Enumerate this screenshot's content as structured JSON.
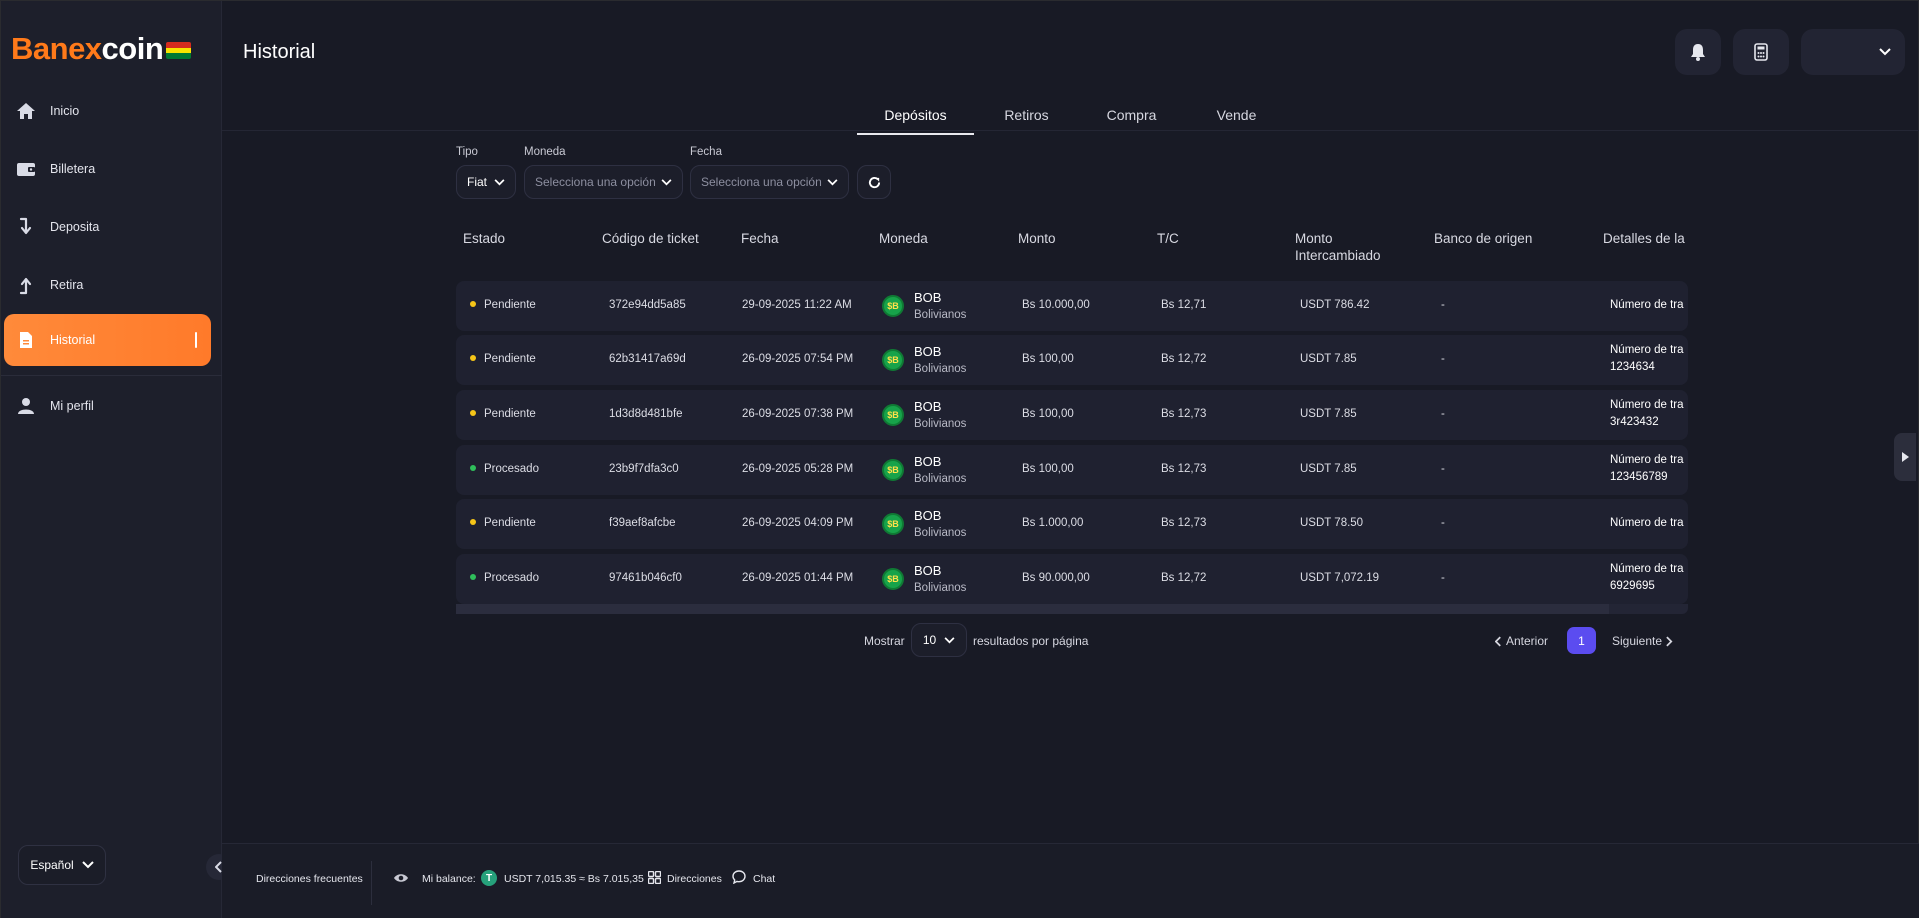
{
  "brand": {
    "name_part1": "Banex",
    "name_part2": "coin"
  },
  "sidebar": {
    "items": [
      {
        "label": "Inicio",
        "icon": "home-icon"
      },
      {
        "label": "Billetera",
        "icon": "wallet-icon"
      },
      {
        "label": "Deposita",
        "icon": "arrow-down-icon"
      },
      {
        "label": "Retira",
        "icon": "arrow-up-icon"
      },
      {
        "label": "Historial",
        "icon": "document-icon",
        "active": true
      },
      {
        "label": "Mi perfil",
        "icon": "user-icon"
      }
    ],
    "language": "Español"
  },
  "header": {
    "title": "Historial"
  },
  "tabs": [
    {
      "label": "Depósitos",
      "active": true
    },
    {
      "label": "Retiros"
    },
    {
      "label": "Compra"
    },
    {
      "label": "Vende"
    }
  ],
  "filters": {
    "tipo": {
      "label": "Tipo",
      "value": "Fiat"
    },
    "moneda": {
      "label": "Moneda",
      "placeholder": "Selecciona una opción"
    },
    "fecha": {
      "label": "Fecha",
      "placeholder": "Selecciona una opción"
    }
  },
  "table": {
    "headers": [
      "Estado",
      "Código de ticket",
      "Fecha",
      "Moneda",
      "Monto",
      "T/C",
      "Monto\nIntercambiado",
      "Banco de origen",
      "Detalles de la"
    ],
    "rows": [
      {
        "status": "Pendiente",
        "status_color": "#f5c518",
        "ticket": "372e94dd5a85",
        "date": "29-09-2025 11:22 AM",
        "coin_symbol": "$B",
        "coin": "BOB",
        "coin_name": "Bolivianos",
        "amount": "Bs 10.000,00",
        "rate": "Bs 12,71",
        "exchanged": "USDT 786.42",
        "bank": "-",
        "detail1": "Número de tra",
        "detail2": ""
      },
      {
        "status": "Pendiente",
        "status_color": "#f5c518",
        "ticket": "62b31417a69d",
        "date": "26-09-2025 07:54 PM",
        "coin_symbol": "$B",
        "coin": "BOB",
        "coin_name": "Bolivianos",
        "amount": "Bs 100,00",
        "rate": "Bs 12,72",
        "exchanged": "USDT 7.85",
        "bank": "-",
        "detail1": "Número de tra",
        "detail2": "1234634"
      },
      {
        "status": "Pendiente",
        "status_color": "#f5c518",
        "ticket": "1d3d8d481bfe",
        "date": "26-09-2025 07:38 PM",
        "coin_symbol": "$B",
        "coin": "BOB",
        "coin_name": "Bolivianos",
        "amount": "Bs 100,00",
        "rate": "Bs 12,73",
        "exchanged": "USDT 7.85",
        "bank": "-",
        "detail1": "Número de tra",
        "detail2": "3r423432"
      },
      {
        "status": "Procesado",
        "status_color": "#2fbf5b",
        "ticket": "23b9f7dfa3c0",
        "date": "26-09-2025 05:28 PM",
        "coin_symbol": "$B",
        "coin": "BOB",
        "coin_name": "Bolivianos",
        "amount": "Bs 100,00",
        "rate": "Bs 12,73",
        "exchanged": "USDT 7.85",
        "bank": "-",
        "detail1": "Número de tra",
        "detail2": "123456789"
      },
      {
        "status": "Pendiente",
        "status_color": "#f5c518",
        "ticket": "f39aef8afcbe",
        "date": "26-09-2025 04:09 PM",
        "coin_symbol": "$B",
        "coin": "BOB",
        "coin_name": "Bolivianos",
        "amount": "Bs 1.000,00",
        "rate": "Bs 12,73",
        "exchanged": "USDT 78.50",
        "bank": "-",
        "detail1": "Número de tra",
        "detail2": ""
      },
      {
        "status": "Procesado",
        "status_color": "#2fbf5b",
        "ticket": "97461b046cf0",
        "date": "26-09-2025 01:44 PM",
        "coin_symbol": "$B",
        "coin": "BOB",
        "coin_name": "Bolivianos",
        "amount": "Bs 90.000,00",
        "rate": "Bs 12,72",
        "exchanged": "USDT 7,072.19",
        "bank": "-",
        "detail1": "Número de tra",
        "detail2": "6929695"
      }
    ]
  },
  "pagination": {
    "show_label": "Mostrar",
    "per_page": "10",
    "per_page_suffix": "resultados por página",
    "prev": "Anterior",
    "current_page": "1",
    "next": "Siguiente"
  },
  "bottom": {
    "frequent": "Direcciones frecuentes",
    "balance_label": "Mi balance:",
    "balance_value": "USDT 7,015.35 ≈ Bs 7.015,35",
    "addresses": "Direcciones",
    "chat": "Chat"
  },
  "colors": {
    "accent": "#ff7a2a",
    "page_active": "#5b4cf0",
    "bg": "#181a25"
  }
}
